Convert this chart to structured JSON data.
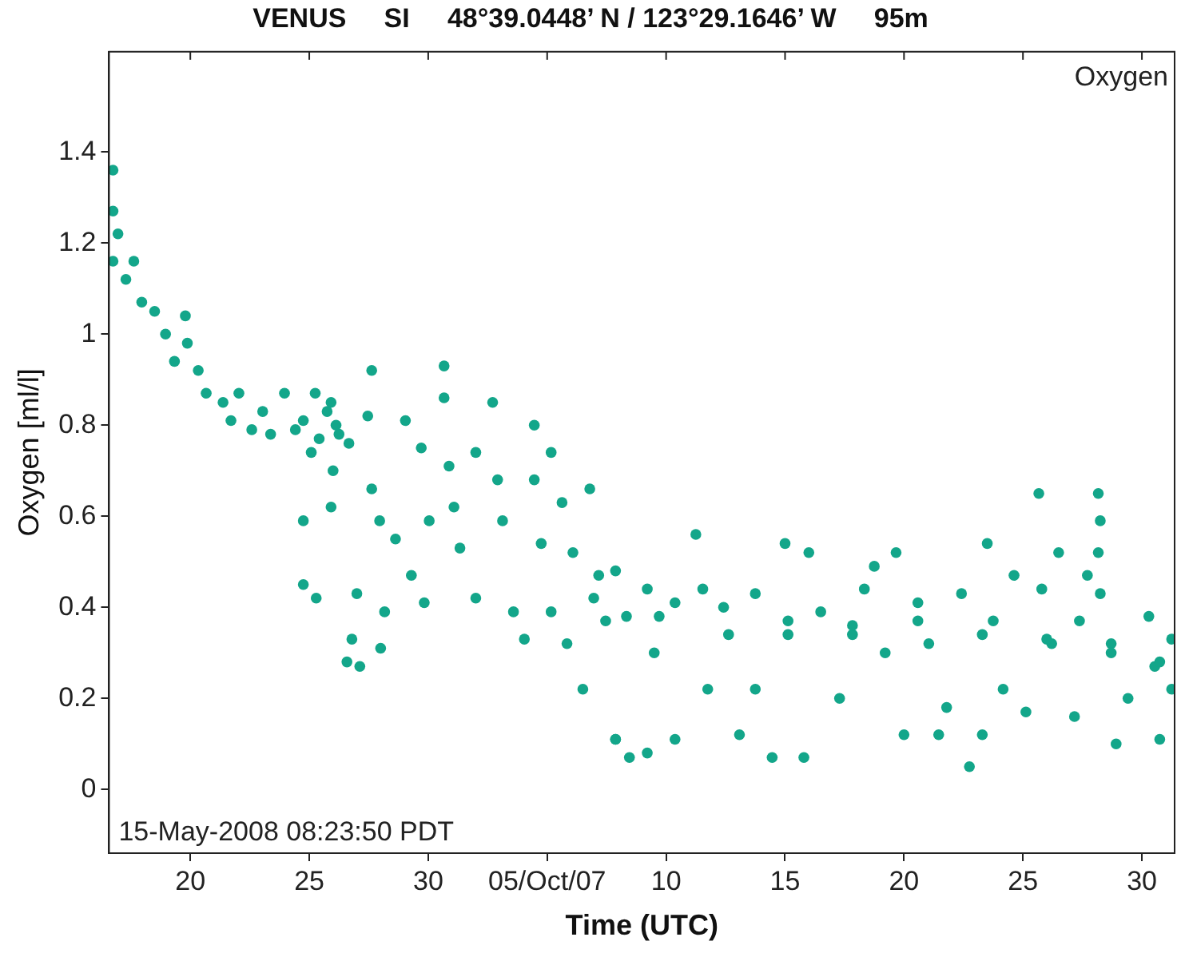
{
  "chart_data": {
    "type": "scatter",
    "title": "VENUS     SI     48°39.0448’ N / 123°29.1646’ W     95m",
    "xlabel": "Time (UTC)",
    "ylabel": "Oxygen [ml/l]",
    "annotations": [
      "Oxygen",
      "15-May-2008 08:23:50 PDT"
    ],
    "xlim": [
      "--09-16T14:00",
      "--10-31T09:00"
    ],
    "xticks": [
      {
        "value": "--09-20",
        "label": "20"
      },
      {
        "value": "--09-25",
        "label": "25"
      },
      {
        "value": "--09-30",
        "label": "30"
      },
      {
        "value": "--10-05",
        "label": "05/Oct/07"
      },
      {
        "value": "--10-10",
        "label": "10"
      },
      {
        "value": "--10-15",
        "label": "15"
      },
      {
        "value": "--10-20",
        "label": "20"
      },
      {
        "value": "--10-25",
        "label": "25"
      },
      {
        "value": "--10-30",
        "label": "30"
      }
    ],
    "ylim": [
      -0.14,
      1.62
    ],
    "yticks": [
      0,
      0.2,
      0.4,
      0.6,
      0.8,
      1,
      1.2,
      1.4
    ],
    "grid": false,
    "legend": false,
    "marker": "circle",
    "series": [
      {
        "color": "#13a68a",
        "x": [
          "--09-16T18:00",
          "--09-16T18:00",
          "--09-16T23:00",
          "--09-16T18:00",
          "--09-17T07:00",
          "--09-17T15:00",
          "--09-17T23:00",
          "--09-18T12:00",
          "--09-18T23:00",
          "--09-19T08:00",
          "--09-19T19:00",
          "--09-19T21:00",
          "--09-20T08:00",
          "--09-20T16:00",
          "--09-21T09:00",
          "--09-21T17:00",
          "--09-22T01:00",
          "--09-22T14:00",
          "--09-23T01:00",
          "--09-23T09:00",
          "--09-23T23:00",
          "--09-24T10:00",
          "--09-24T18:00",
          "--09-25T10:00",
          "--09-25T18:00",
          "--09-26T00:00",
          "--09-26T06:00",
          "--09-26T16:00",
          "--09-25T02:00",
          "--09-25T06:00",
          "--09-25T22:00",
          "--09-26T03:00",
          "--09-24T18:00",
          "--09-24T18:00",
          "--09-25T07:00",
          "--09-25T22:00",
          "--09-26T14:00",
          "--09-27T00:00",
          "--09-27T03:00",
          "--09-26T19:00",
          "--09-27T15:00",
          "--09-27T11:00",
          "--09-27T15:00",
          "--09-27T23:00",
          "--09-28T00:00",
          "--09-28T04:00",
          "--09-28T15:00",
          "--09-29T01:00",
          "--09-29T07:00",
          "--09-29T17:00",
          "--09-29T20:00",
          "--09-30T01:00",
          "--09-30T16:00",
          "--09-30T16:00",
          "--09-30T21:00",
          "--10-01T02:00",
          "--10-01T08:00",
          "--10-02T00:00",
          "--10-02T00:00",
          "--10-02T17:00",
          "--10-02T22:00",
          "--10-03T03:00",
          "--10-03T14:00",
          "--10-04T01:00",
          "--10-04T11:00",
          "--10-04T11:00",
          "--10-04T18:00",
          "--10-05T04:00",
          "--10-05T04:00",
          "--10-05T15:00",
          "--10-05T20:00",
          "--10-06T02:00",
          "--10-06T12:00",
          "--10-06T19:00",
          "--10-06T23:00",
          "--10-07T11:00",
          "--10-07T21:00",
          "--10-07T21:00",
          "--10-07T04:00",
          "--10-07T21:00",
          "--10-08T11:00",
          "--10-08T08:00",
          "--10-09T05:00",
          "--10-09T05:00",
          "--10-09T12:00",
          "--10-10T09:00",
          "--10-10T09:00",
          "--10-11T06:00",
          "--10-11T13:00",
          "--10-11T18:00",
          "--10-12T15:00",
          "--10-13T02:00",
          "--10-13T18:00",
          "--10-13T18:00",
          "--10-14T11:00",
          "--10-15T00:00",
          "--10-15T03:00",
          "--10-15T19:00",
          "--10-16T00:00",
          "--10-16T12:00",
          "--10-17T07:00",
          "--10-17T20:00",
          "--10-18T08:00",
          "--10-18T18:00",
          "--10-19T05:00",
          "--10-19T16:00",
          "--10-20T00:00",
          "--10-20T14:00",
          "--10-21T01:00",
          "--10-21T11:00",
          "--10-21T19:00",
          "--10-22T10:00",
          "--10-22T18:00",
          "--10-23T07:00",
          "--10-23T12:00",
          "--10-23T18:00",
          "--10-24T04:00",
          "--10-24T15:00",
          "--10-25T03:00",
          "--10-25T16:00",
          "--10-25T19:00",
          "--10-26T05:00",
          "--10-26T12:00",
          "--10-27T04:00",
          "--10-27T09:00",
          "--10-27T17:00",
          "--10-28T04:00",
          "--10-28T06:00",
          "--10-28T04:00",
          "--10-28T06:00",
          "--10-28T17:00",
          "--10-28T22:00",
          "--10-29T10:00",
          "--10-30T07:00",
          "--10-30T13:00",
          "--10-30T18:00",
          "--10-31T06:00",
          "--10-31T06:00",
          "--10-09T17:00",
          "--10-12T10:00",
          "--10-15T03:00",
          "--10-17T20:00",
          "--10-20T14:00",
          "--10-23T07:00",
          "--10-26T00:00",
          "--10-28T17:00",
          "--10-30T18:00"
        ],
        "values": [
          1.36,
          1.27,
          1.22,
          1.16,
          1.12,
          1.16,
          1.07,
          1.05,
          1.0,
          0.94,
          1.04,
          0.98,
          0.92,
          0.87,
          0.85,
          0.81,
          0.87,
          0.79,
          0.83,
          0.78,
          0.87,
          0.79,
          0.81,
          0.77,
          0.83,
          0.7,
          0.78,
          0.76,
          0.74,
          0.87,
          0.85,
          0.8,
          0.59,
          0.45,
          0.42,
          0.62,
          0.28,
          0.43,
          0.27,
          0.33,
          0.92,
          0.82,
          0.66,
          0.59,
          0.31,
          0.39,
          0.55,
          0.81,
          0.47,
          0.75,
          0.41,
          0.59,
          0.93,
          0.86,
          0.71,
          0.62,
          0.53,
          0.42,
          0.74,
          0.85,
          0.68,
          0.59,
          0.39,
          0.33,
          0.8,
          0.68,
          0.54,
          0.74,
          0.39,
          0.63,
          0.32,
          0.52,
          0.22,
          0.66,
          0.42,
          0.37,
          0.11,
          0.48,
          0.47,
          0.11,
          0.07,
          0.38,
          0.44,
          0.08,
          0.3,
          0.11,
          0.41,
          0.56,
          0.44,
          0.22,
          0.34,
          0.12,
          0.43,
          0.22,
          0.07,
          0.54,
          0.34,
          0.07,
          0.52,
          0.39,
          0.2,
          0.34,
          0.44,
          0.49,
          0.3,
          0.52,
          0.12,
          0.41,
          0.32,
          0.12,
          0.18,
          0.43,
          0.05,
          0.12,
          0.54,
          0.37,
          0.22,
          0.47,
          0.17,
          0.65,
          0.44,
          0.32,
          0.52,
          0.16,
          0.37,
          0.47,
          0.65,
          0.59,
          0.52,
          0.43,
          0.32,
          0.1,
          0.2,
          0.38,
          0.27,
          0.11,
          0.22,
          0.33,
          0.38,
          0.4,
          0.37,
          0.36,
          0.37,
          0.34,
          0.33,
          0.3,
          0.28
        ]
      }
    ]
  }
}
